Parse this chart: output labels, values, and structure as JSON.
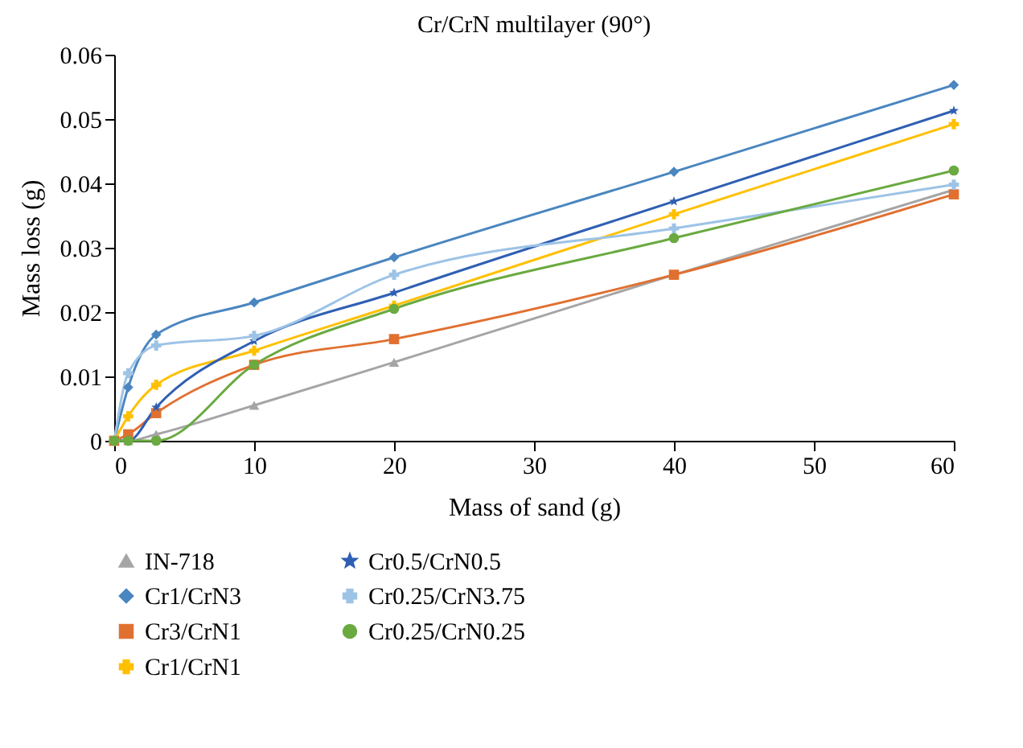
{
  "chart_data": {
    "type": "line",
    "title": "Cr/CrN multilayer (90°)",
    "xlabel": "Mass of sand (g)",
    "ylabel": "Mass loss (g)",
    "x": [
      0,
      1,
      3,
      10,
      20,
      40,
      60
    ],
    "series": [
      {
        "name": "IN-718",
        "color": "#a5a5a5",
        "marker": "triangle",
        "values": [
          0,
          0,
          0.001,
          0.0055,
          0.0122,
          0.0258,
          0.039
        ]
      },
      {
        "name": "Cr1/CrN3",
        "color": "#4a86c0",
        "marker": "diamond",
        "values": [
          0,
          0.0083,
          0.0165,
          0.0215,
          0.0285,
          0.0418,
          0.0553
        ]
      },
      {
        "name": "Cr3/CrN1",
        "color": "#e07030",
        "marker": "square",
        "values": [
          0,
          0.001,
          0.0043,
          0.0118,
          0.0158,
          0.0258,
          0.0383
        ]
      },
      {
        "name": "Cr1/CrN1",
        "color": "#ffc000",
        "marker": "cross",
        "values": [
          0,
          0.0038,
          0.0087,
          0.014,
          0.021,
          0.0352,
          0.0492
        ]
      },
      {
        "name": "Cr0.5/CrN0.5",
        "color": "#2f5fb3",
        "marker": "star",
        "values": [
          0,
          0,
          0.0052,
          0.0155,
          0.023,
          0.0372,
          0.0513
        ]
      },
      {
        "name": "Cr0.25/CrN3.75",
        "color": "#9dc3e6",
        "marker": "cross",
        "values": [
          0,
          0.0105,
          0.0148,
          0.0163,
          0.0258,
          0.033,
          0.0398
        ]
      },
      {
        "name": "Cr0.25/CrN0.25",
        "color": "#6aaa40",
        "marker": "circle",
        "values": [
          0,
          0,
          0,
          0.0118,
          0.0205,
          0.0315,
          0.042
        ]
      }
    ],
    "xlim": [
      0,
      60
    ],
    "xticks": [
      0,
      10,
      20,
      30,
      40,
      50,
      60
    ],
    "ylim": [
      0,
      0.06
    ],
    "yticks": [
      0,
      0.01,
      0.02,
      0.03,
      0.04,
      0.05,
      0.06
    ],
    "grid": false,
    "legend": "bottom"
  }
}
